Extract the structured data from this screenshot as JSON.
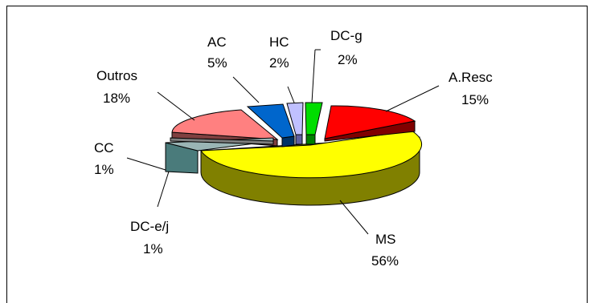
{
  "chart_data": {
    "type": "pie",
    "three_d": true,
    "exploded": true,
    "title": "",
    "legend": "none",
    "slices": [
      {
        "label": "DC-g",
        "percent": "2%",
        "value": 2,
        "color": "#00dd00"
      },
      {
        "label": "A.Resc",
        "percent": "15%",
        "value": 15,
        "color": "#ff0000"
      },
      {
        "label": "MS",
        "percent": "56%",
        "value": 56,
        "color": "#ffff00"
      },
      {
        "label": "DC-e/j",
        "percent": "1%",
        "value": 1,
        "color": "#7f7f7f"
      },
      {
        "label": "CC",
        "percent": "1%",
        "value": 1,
        "color": "#4a7b7b"
      },
      {
        "label": "Outros",
        "percent": "18%",
        "value": 18,
        "color": "#ff8080"
      },
      {
        "label": "AC",
        "percent": "5%",
        "value": 5,
        "color": "#0066cc"
      },
      {
        "label": "HC",
        "percent": "2%",
        "value": 2,
        "color": "#c0c0ff"
      }
    ]
  }
}
